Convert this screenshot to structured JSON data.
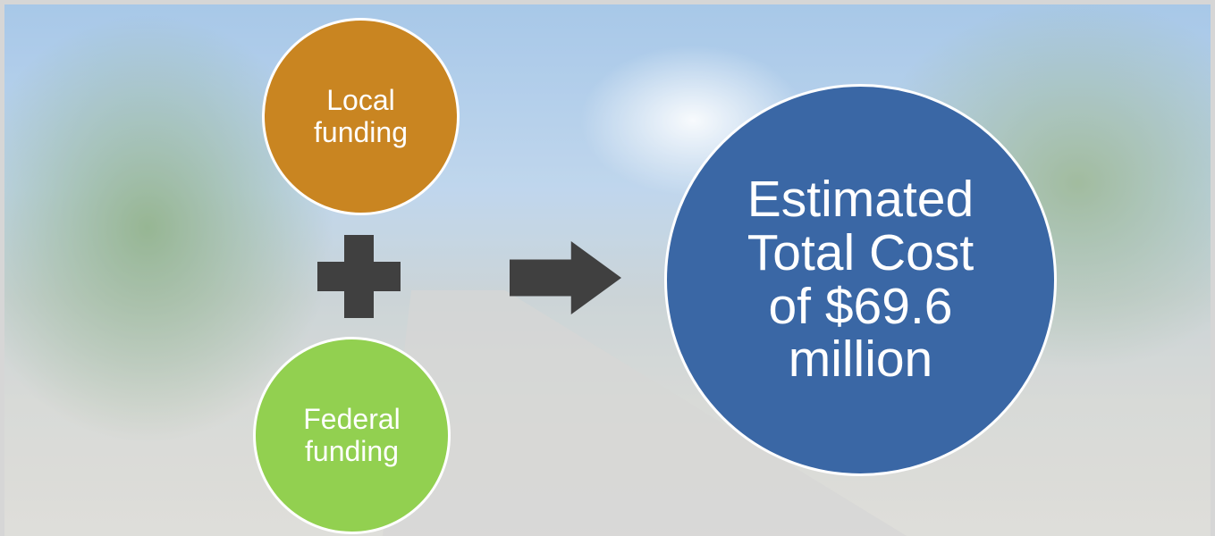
{
  "nodes": [
    {
      "label": "Local funding"
    },
    {
      "label": "Federal funding"
    },
    {
      "label": "Estimated Total Cost of $69.6 million"
    }
  ]
}
